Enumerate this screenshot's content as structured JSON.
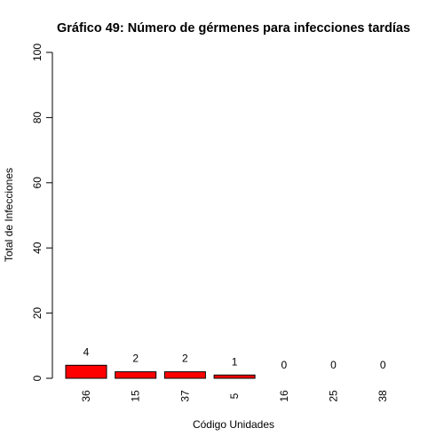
{
  "chart_data": {
    "type": "bar",
    "title": "Gráfico 49: Número de gérmenes para infecciones tardías",
    "xlabel": "Código Unidades",
    "ylabel": "Total de Infecciones",
    "categories": [
      "36",
      "15",
      "37",
      "5",
      "16",
      "25",
      "38"
    ],
    "values": [
      4,
      2,
      2,
      1,
      0,
      0,
      0
    ],
    "data_labels": [
      "4",
      "2",
      "2",
      "1",
      "0",
      "0",
      "0"
    ],
    "ylim": [
      0,
      100
    ],
    "yticks": [
      "0",
      "20",
      "40",
      "60",
      "80",
      "100"
    ],
    "bar_color": "#ff0000",
    "bar_border_color": "#000000",
    "grid": false,
    "legend": "none"
  }
}
